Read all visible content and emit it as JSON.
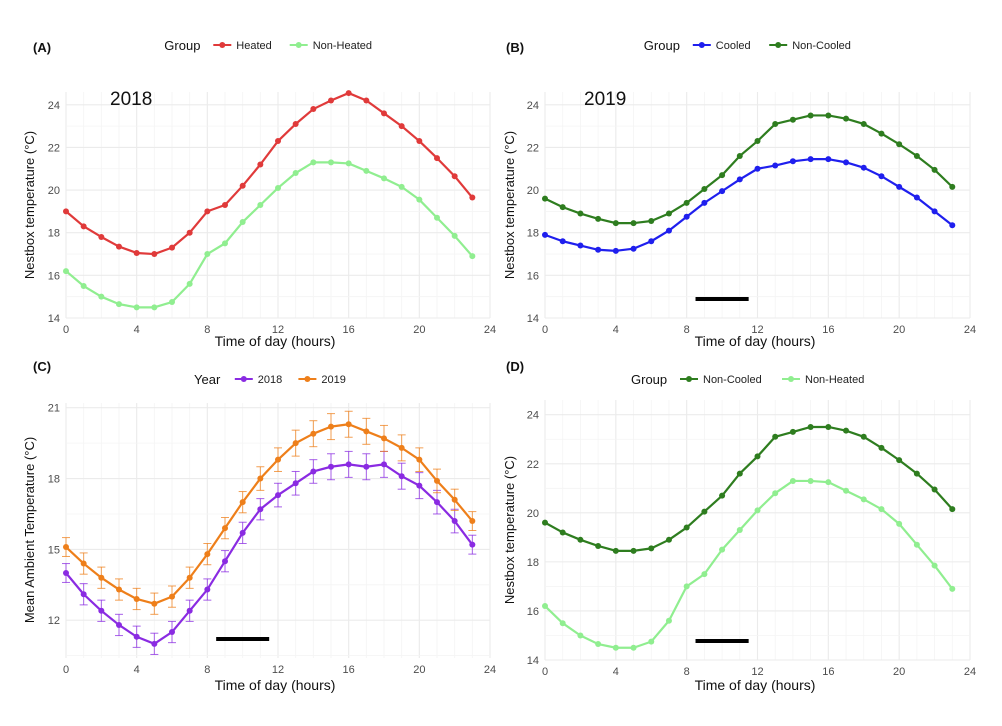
{
  "chart_data": [
    {
      "panel_label": "(A)",
      "type": "line",
      "inset_text": "2018",
      "legend": {
        "title": "Group",
        "placement": "top"
      },
      "xlabel": "Time of day (hours)",
      "ylabel": "Nestbox temperature (°C)",
      "xlim": [
        0,
        24
      ],
      "ylim": [
        14,
        24.6
      ],
      "xticks": [
        0,
        4,
        8,
        12,
        16,
        20,
        24
      ],
      "yticks": [
        14,
        16,
        18,
        20,
        22,
        24
      ],
      "grid": true,
      "x": [
        0,
        1,
        2,
        3,
        4,
        5,
        6,
        7,
        8,
        9,
        10,
        11,
        12,
        13,
        14,
        15,
        16,
        17,
        18,
        19,
        20,
        21,
        22,
        23
      ],
      "series": [
        {
          "name": "Heated",
          "color": "#e03a3a",
          "values": [
            19.0,
            18.3,
            17.8,
            17.35,
            17.05,
            17.0,
            17.3,
            18.0,
            19.0,
            19.3,
            20.2,
            21.2,
            22.3,
            23.1,
            23.8,
            24.2,
            24.55,
            24.2,
            23.6,
            23.0,
            22.3,
            21.5,
            20.65,
            19.65
          ]
        },
        {
          "name": "Non-Heated",
          "color": "#90ee90",
          "values": [
            16.2,
            15.5,
            15.0,
            14.65,
            14.5,
            14.5,
            14.75,
            15.6,
            17.0,
            17.5,
            18.5,
            19.3,
            20.1,
            20.8,
            21.3,
            21.3,
            21.25,
            20.9,
            20.55,
            20.15,
            19.55,
            18.7,
            17.85,
            16.9
          ]
        }
      ]
    },
    {
      "panel_label": "(B)",
      "type": "line",
      "inset_text": "2019",
      "legend": {
        "title": "Group",
        "placement": "top"
      },
      "xlabel": "Time of day (hours)",
      "ylabel": "Nestbox temperature (°C)",
      "xlim": [
        0,
        24
      ],
      "ylim": [
        14,
        24.6
      ],
      "xticks": [
        0,
        4,
        8,
        12,
        16,
        20,
        24
      ],
      "yticks": [
        14,
        16,
        18,
        20,
        22,
        24
      ],
      "grid": true,
      "highlight_bar": {
        "x_from": 8.5,
        "x_to": 11.5
      },
      "x": [
        0,
        1,
        2,
        3,
        4,
        5,
        6,
        7,
        8,
        9,
        10,
        11,
        12,
        13,
        14,
        15,
        16,
        17,
        18,
        19,
        20,
        21,
        22,
        23
      ],
      "series": [
        {
          "name": "Cooled",
          "color": "#1f1fee",
          "values": [
            17.9,
            17.6,
            17.4,
            17.2,
            17.15,
            17.25,
            17.6,
            18.1,
            18.75,
            19.4,
            19.95,
            20.5,
            21.0,
            21.15,
            21.35,
            21.45,
            21.45,
            21.3,
            21.05,
            20.65,
            20.15,
            19.65,
            19.0,
            18.35
          ]
        },
        {
          "name": "Non-Cooled",
          "color": "#2e7d1f",
          "values": [
            19.6,
            19.2,
            18.9,
            18.65,
            18.45,
            18.45,
            18.55,
            18.9,
            19.4,
            20.05,
            20.7,
            21.6,
            22.3,
            23.1,
            23.3,
            23.5,
            23.5,
            23.35,
            23.1,
            22.65,
            22.15,
            21.6,
            20.95,
            20.15
          ]
        }
      ]
    },
    {
      "panel_label": "(C)",
      "type": "line",
      "legend": {
        "title": "Year",
        "placement": "top"
      },
      "xlabel": "Time of day (hours)",
      "ylabel": "Mean Ambient Temperature (°C)",
      "xlim": [
        0,
        24
      ],
      "ylim": [
        10.4,
        21.2
      ],
      "xticks": [
        0,
        4,
        8,
        12,
        16,
        20,
        24
      ],
      "yticks": [
        12,
        15,
        18,
        21
      ],
      "grid": true,
      "error_bars": true,
      "highlight_bar": {
        "x_from": 8.5,
        "x_to": 11.5
      },
      "x": [
        0,
        1,
        2,
        3,
        4,
        5,
        6,
        7,
        8,
        9,
        10,
        11,
        12,
        13,
        14,
        15,
        16,
        17,
        18,
        19,
        20,
        21,
        22,
        23
      ],
      "series": [
        {
          "name": "2018",
          "color": "#8a2be2",
          "values": [
            14.0,
            13.1,
            12.4,
            11.8,
            11.3,
            11.0,
            11.5,
            12.4,
            13.3,
            14.5,
            15.7,
            16.7,
            17.3,
            17.8,
            18.3,
            18.5,
            18.6,
            18.5,
            18.6,
            18.1,
            17.7,
            17.0,
            16.2,
            15.2
          ],
          "errors": [
            0.4,
            0.45,
            0.45,
            0.45,
            0.45,
            0.45,
            0.45,
            0.45,
            0.45,
            0.45,
            0.45,
            0.45,
            0.5,
            0.5,
            0.5,
            0.55,
            0.55,
            0.55,
            0.55,
            0.55,
            0.55,
            0.5,
            0.5,
            0.4
          ]
        },
        {
          "name": "2019",
          "color": "#ee7f1a",
          "values": [
            15.1,
            14.4,
            13.8,
            13.3,
            12.9,
            12.7,
            13.0,
            13.8,
            14.8,
            15.9,
            17.0,
            18.0,
            18.8,
            19.5,
            19.9,
            20.2,
            20.3,
            20.0,
            19.7,
            19.3,
            18.8,
            17.9,
            17.1,
            16.2
          ],
          "errors": [
            0.4,
            0.45,
            0.45,
            0.45,
            0.45,
            0.45,
            0.45,
            0.45,
            0.45,
            0.45,
            0.45,
            0.5,
            0.5,
            0.55,
            0.55,
            0.55,
            0.55,
            0.55,
            0.55,
            0.55,
            0.5,
            0.5,
            0.45,
            0.4
          ]
        }
      ]
    },
    {
      "panel_label": "(D)",
      "type": "line",
      "legend": {
        "title": "Group",
        "placement": "top"
      },
      "xlabel": "Time of day (hours)",
      "ylabel": "Nestbox temperature (°C)",
      "xlim": [
        0,
        24
      ],
      "ylim": [
        14,
        24.6
      ],
      "xticks": [
        0,
        4,
        8,
        12,
        16,
        20,
        24
      ],
      "yticks": [
        14,
        16,
        18,
        20,
        22,
        24
      ],
      "grid": true,
      "highlight_bar": {
        "x_from": 8.5,
        "x_to": 11.5
      },
      "x": [
        0,
        1,
        2,
        3,
        4,
        5,
        6,
        7,
        8,
        9,
        10,
        11,
        12,
        13,
        14,
        15,
        16,
        17,
        18,
        19,
        20,
        21,
        22,
        23
      ],
      "series": [
        {
          "name": "Non-Cooled",
          "color": "#2e7d1f",
          "values": [
            19.6,
            19.2,
            18.9,
            18.65,
            18.45,
            18.45,
            18.55,
            18.9,
            19.4,
            20.05,
            20.7,
            21.6,
            22.3,
            23.1,
            23.3,
            23.5,
            23.5,
            23.35,
            23.1,
            22.65,
            22.15,
            21.6,
            20.95,
            20.15
          ]
        },
        {
          "name": "Non-Heated",
          "color": "#90ee90",
          "values": [
            16.2,
            15.5,
            15.0,
            14.65,
            14.5,
            14.5,
            14.75,
            15.6,
            17.0,
            17.5,
            18.5,
            19.3,
            20.1,
            20.8,
            21.3,
            21.3,
            21.25,
            20.9,
            20.55,
            20.15,
            19.55,
            18.7,
            17.85,
            16.9
          ]
        }
      ]
    }
  ]
}
